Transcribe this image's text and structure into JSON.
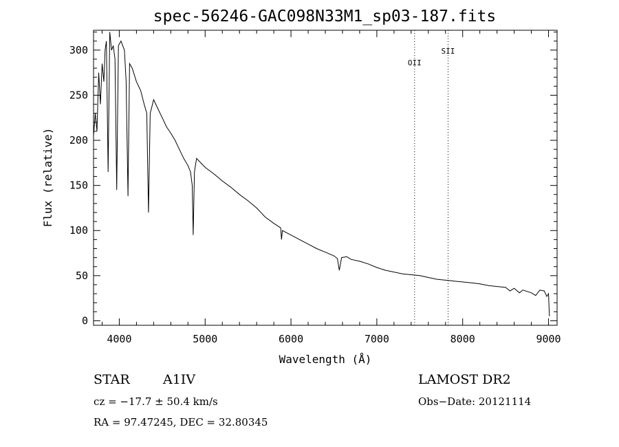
{
  "chart_data": {
    "type": "line",
    "title": "spec-56246-GAC098N33M1_sp03-187.fits",
    "xlabel": "Wavelength (Å)",
    "ylabel": "Flux (relative)",
    "xlim": [
      3700,
      9100
    ],
    "ylim": [
      -5,
      322
    ],
    "x_ticks": [
      4000,
      5000,
      6000,
      7000,
      8000,
      9000
    ],
    "y_ticks": [
      0,
      50,
      100,
      150,
      200,
      250,
      300
    ],
    "grid": false,
    "series": [
      {
        "name": "spectrum",
        "x": [
          3700,
          3720,
          3740,
          3760,
          3780,
          3800,
          3820,
          3835,
          3850,
          3870,
          3889,
          3910,
          3930,
          3950,
          3970,
          3990,
          4020,
          4060,
          4080,
          4101,
          4120,
          4150,
          4200,
          4250,
          4290,
          4320,
          4340,
          4360,
          4400,
          4450,
          4500,
          4550,
          4600,
          4650,
          4700,
          4750,
          4800,
          4830,
          4850,
          4861,
          4875,
          4900,
          4950,
          5000,
          5100,
          5200,
          5300,
          5400,
          5500,
          5600,
          5700,
          5800,
          5880,
          5890,
          5900,
          6000,
          6100,
          6200,
          6300,
          6400,
          6500,
          6540,
          6563,
          6590,
          6650,
          6700,
          6800,
          6900,
          7000,
          7100,
          7200,
          7300,
          7400,
          7500,
          7600,
          7700,
          7800,
          7900,
          8000,
          8100,
          8200,
          8300,
          8400,
          8500,
          8550,
          8600,
          8662,
          8700,
          8800,
          8850,
          8900,
          8950,
          8980,
          9000,
          9010
        ],
        "y": [
          205,
          230,
          210,
          275,
          240,
          285,
          265,
          300,
          310,
          165,
          320,
          300,
          305,
          290,
          145,
          305,
          310,
          300,
          265,
          138,
          285,
          280,
          265,
          255,
          240,
          230,
          120,
          230,
          245,
          235,
          225,
          215,
          208,
          200,
          190,
          180,
          172,
          165,
          150,
          95,
          165,
          180,
          175,
          170,
          163,
          155,
          148,
          140,
          133,
          125,
          115,
          108,
          103,
          90,
          100,
          95,
          90,
          85,
          80,
          76,
          72,
          69,
          56,
          70,
          71,
          68,
          66,
          63,
          59,
          56,
          54,
          52,
          51,
          50,
          48,
          46,
          45,
          44,
          43,
          42,
          41,
          39,
          38,
          37,
          33,
          36,
          31,
          34,
          31,
          28,
          34,
          33,
          27,
          30,
          5
        ]
      }
    ],
    "annotations": [
      {
        "label": "OII",
        "x": 7440,
        "y": 283
      },
      {
        "label": "SII",
        "x": 7830,
        "y": 296
      }
    ]
  },
  "info": {
    "object_type": "STAR",
    "subclass": "A1IV",
    "survey": "LAMOST DR2",
    "cz": "cz = −17.7 ± 50.4 km/s",
    "obs_date": "Obs−Date: 20121114",
    "coords": "RA =  97.47245, DEC =  32.80345"
  }
}
